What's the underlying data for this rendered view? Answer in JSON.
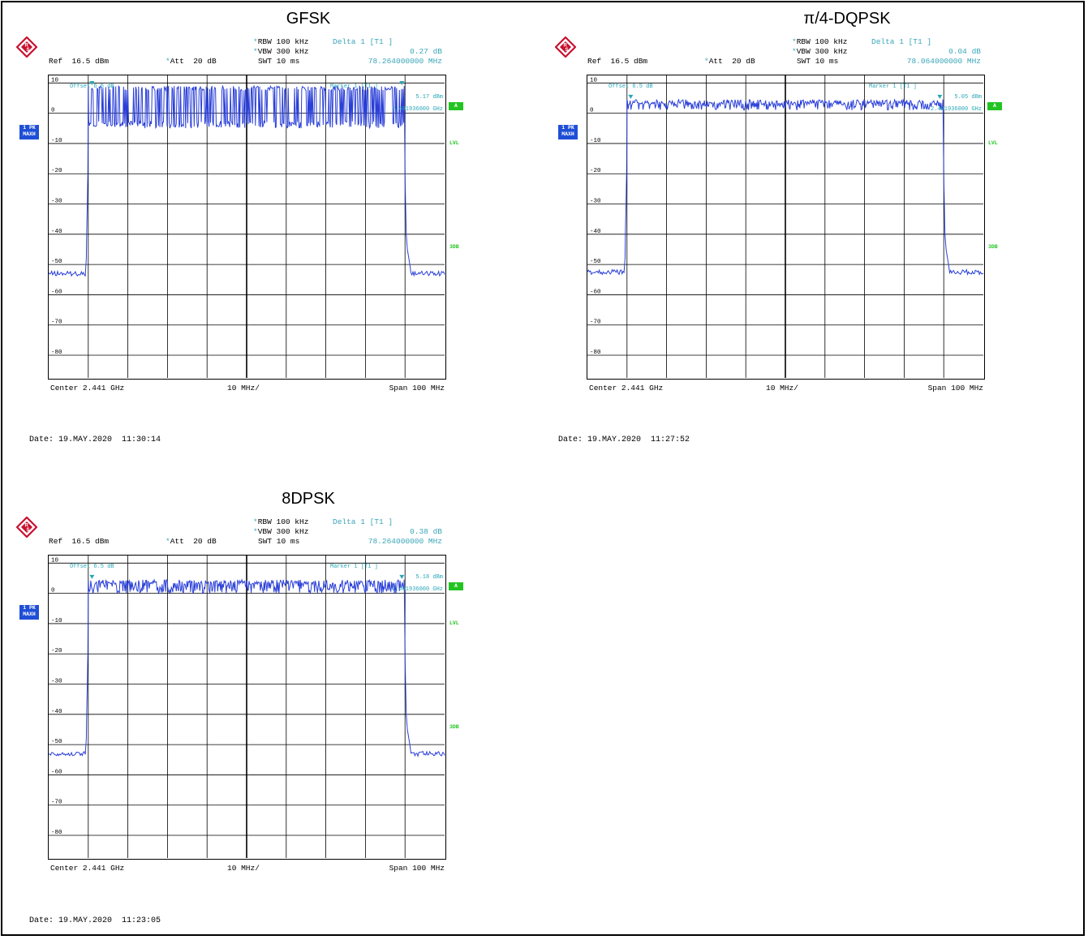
{
  "chart_data": [
    {
      "type": "line",
      "title": "GFSK",
      "instrument": {
        "rbw": "RBW 100 kHz",
        "vbw": "VBW 300 kHz",
        "swt": "SWT 10 ms",
        "ref": "Ref  16.5 dBm",
        "att": "Att  20 dB",
        "offset": "Offset  6.5 dB"
      },
      "delta_marker": {
        "label": "Delta 1 [T1 ]",
        "value": "0.27 dB",
        "freq": "78.264000000 MHz"
      },
      "marker": {
        "label": "Marker 1 [T1 ]",
        "value": "5.17 dBm",
        "freq": "2.401936000 GHz"
      },
      "indicators": {
        "trace": "1 PK",
        "mode": "MAXH",
        "a": "A",
        "lvl": "LVL",
        "db3": "3DB"
      },
      "x_center": "Center 2.441 GHz",
      "x_div": "10 MHz/",
      "x_span": "Span 100 MHz",
      "y_ticks": [
        "10",
        "0",
        "-10",
        "-20",
        "-30",
        "-40",
        "-50",
        "-60",
        "-70",
        "-80"
      ],
      "ylim": [
        -87.5,
        12.5
      ],
      "xlim": [
        2391,
        2491
      ],
      "x_unit": "MHz",
      "marker1_x": 2401.936,
      "marker2_x": 2480.2,
      "band_edges": [
        2401,
        2481
      ],
      "inband_top": 9,
      "inband_bottom": -5,
      "noise_floor": -53,
      "date": "Date: 19.MAY.2020  11:30:14"
    },
    {
      "type": "line",
      "title": "π/4-DQPSK",
      "instrument": {
        "rbw": "RBW 100 kHz",
        "vbw": "VBW 300 kHz",
        "swt": "SWT 10 ms",
        "ref": "Ref  16.5 dBm",
        "att": "Att  20 dB",
        "offset": "Offset  6.5 dB"
      },
      "delta_marker": {
        "label": "Delta 1 [T1 ]",
        "value": "0.04 dB",
        "freq": "78.064000000 MHz"
      },
      "marker": {
        "label": "Marker 1 [T1 ]",
        "value": "5.05 dBm",
        "freq": "2.401936000 GHz"
      },
      "indicators": {
        "trace": "1 PK",
        "mode": "MAXH",
        "a": "A",
        "lvl": "LVL",
        "db3": "3DB"
      },
      "x_center": "Center 2.441 GHz",
      "x_div": "10 MHz/",
      "x_span": "Span 100 MHz",
      "y_ticks": [
        "10",
        "0",
        "-10",
        "-20",
        "-30",
        "-40",
        "-50",
        "-60",
        "-70",
        "-80"
      ],
      "ylim": [
        -87.5,
        12.5
      ],
      "xlim": [
        2391,
        2491
      ],
      "x_unit": "MHz",
      "marker1_x": 2401.936,
      "marker2_x": 2480.0,
      "band_edges": [
        2401,
        2481
      ],
      "inband_top": 4.5,
      "inband_bottom": 1,
      "noise_floor": -52.5,
      "date": "Date: 19.MAY.2020  11:27:52"
    },
    {
      "type": "line",
      "title": "8DPSK",
      "instrument": {
        "rbw": "RBW 100 kHz",
        "vbw": "VBW 300 kHz",
        "swt": "SWT 10 ms",
        "ref": "Ref  16.5 dBm",
        "att": "Att  20 dB",
        "offset": "Offset  6.5 dB"
      },
      "delta_marker": {
        "label": "Delta 1 [T1 ]",
        "value": "0.38 dB",
        "freq": "78.264000000 MHz"
      },
      "marker": {
        "label": "Marker 1 [T1 ]",
        "value": "5.18 dBm",
        "freq": "2.401936000 GHz"
      },
      "indicators": {
        "trace": "1 PK",
        "mode": "MAXH",
        "a": "A",
        "lvl": "LVL",
        "db3": "3DB"
      },
      "x_center": "Center 2.441 GHz",
      "x_div": "10 MHz/",
      "x_span": "Span 100 MHz",
      "y_ticks": [
        "10",
        "0",
        "-10",
        "-20",
        "-30",
        "-40",
        "-50",
        "-60",
        "-70",
        "-80"
      ],
      "ylim": [
        -87.5,
        12.5
      ],
      "xlim": [
        2391,
        2491
      ],
      "x_unit": "MHz",
      "marker1_x": 2401.936,
      "marker2_x": 2480.2,
      "band_edges": [
        2401,
        2481
      ],
      "inband_top": 4.5,
      "inband_bottom": 0,
      "noise_floor": -53,
      "date": "Date: 19.MAY.2020  11:23:05"
    }
  ],
  "colors": {
    "trace": "#2a3fd8",
    "marker": "#2aa6b8",
    "grid": "#000000",
    "pk_box": "#1f4fd6",
    "green": "#22c422"
  },
  "icons": {
    "logo": "rohde-schwarz-logo-icon"
  }
}
